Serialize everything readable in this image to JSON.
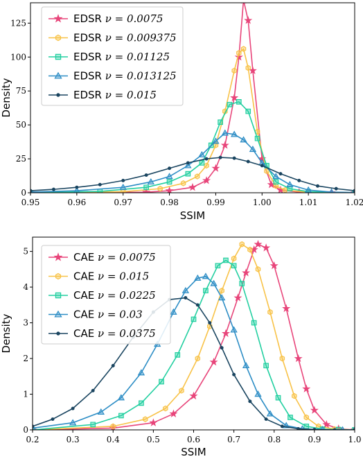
{
  "chart_data": [
    {
      "type": "line",
      "xlabel": "SSIM",
      "ylabel": "Density",
      "xlim": [
        0.95,
        1.02
      ],
      "ylim": [
        0,
        140
      ],
      "xticks": [
        0.95,
        0.96,
        0.97,
        0.98,
        0.99,
        1.0,
        1.01,
        1.02
      ],
      "xtick_labels": [
        "0.95",
        "0.96",
        "0.97",
        "0.98",
        "0.99",
        "1.00",
        "1.01",
        "1.02"
      ],
      "yticks": [
        0,
        25,
        50,
        75,
        100,
        125
      ],
      "ytick_labels": [
        "0",
        "25",
        "50",
        "75",
        "100",
        "125"
      ],
      "legend_position": "top-left",
      "grid": false,
      "series": [
        {
          "name": "EDSR",
          "nu": "ν = 0.0075",
          "color": "#e8457a",
          "marker": "star",
          "x": [
            0.95,
            0.975,
            0.98,
            0.985,
            0.988,
            0.99,
            0.992,
            0.994,
            0.995,
            0.996,
            0.997,
            0.998,
            1.0,
            1.002,
            1.004,
            1.008,
            1.015,
            1.02
          ],
          "y": [
            0,
            0.4,
            1.5,
            4,
            9,
            18,
            35,
            70,
            100,
            142,
            127,
            90,
            25,
            6,
            2,
            0.5,
            0.1,
            0
          ]
        },
        {
          "name": "EDSR",
          "nu": "ν = 0.009375",
          "color": "#f8c247",
          "marker": "hexagon",
          "x": [
            0.95,
            0.97,
            0.978,
            0.983,
            0.986,
            0.988,
            0.99,
            0.992,
            0.994,
            0.995,
            0.996,
            0.997,
            0.999,
            1.001,
            1.003,
            1.005,
            1.01,
            1.02
          ],
          "y": [
            0,
            0.8,
            3,
            7,
            12,
            20,
            35,
            60,
            90,
            103,
            106,
            92,
            45,
            16,
            5,
            2,
            0.3,
            0
          ]
        },
        {
          "name": "EDSR",
          "nu": "ν = 0.01125",
          "color": "#22cfa0",
          "marker": "square",
          "x": [
            0.95,
            0.965,
            0.975,
            0.98,
            0.984,
            0.987,
            0.989,
            0.991,
            0.993,
            0.995,
            0.997,
            0.999,
            1.001,
            1.003,
            1.006,
            1.01,
            1.02
          ],
          "y": [
            0,
            1,
            4,
            8,
            14,
            22,
            35,
            52,
            65,
            67,
            60,
            40,
            20,
            8,
            3,
            0.8,
            0
          ]
        },
        {
          "name": "EDSR",
          "nu": "ν = 0.013125",
          "color": "#2c8dc5",
          "marker": "triangle",
          "x": [
            0.95,
            0.96,
            0.97,
            0.976,
            0.98,
            0.984,
            0.987,
            0.99,
            0.992,
            0.994,
            0.996,
            0.998,
            1.0,
            1.003,
            1.006,
            1.01,
            1.015,
            1.02
          ],
          "y": [
            0.5,
            1.5,
            4,
            8,
            12,
            20,
            28,
            38,
            44,
            43,
            39,
            32,
            22,
            12,
            6,
            2,
            0.5,
            0.2
          ]
        },
        {
          "name": "EDSR",
          "nu": "ν = 0.015",
          "color": "#1a4560",
          "marker": "circle",
          "x": [
            0.95,
            0.955,
            0.96,
            0.965,
            0.97,
            0.975,
            0.98,
            0.984,
            0.988,
            0.991,
            0.994,
            0.997,
            1.0,
            1.004,
            1.008,
            1.012,
            1.016,
            1.02
          ],
          "y": [
            1.5,
            2.5,
            4,
            6,
            9,
            13,
            18,
            22,
            25,
            26,
            25.5,
            23,
            20,
            14,
            9,
            5,
            3,
            1.5
          ]
        }
      ]
    },
    {
      "type": "line",
      "xlabel": "SSIM",
      "ylabel": "Density",
      "xlim": [
        0.2,
        1.0
      ],
      "ylim": [
        0,
        5.4
      ],
      "xticks": [
        0.2,
        0.3,
        0.4,
        0.5,
        0.6,
        0.7,
        0.8,
        0.9,
        1.0
      ],
      "xtick_labels": [
        "0.2",
        "0.3",
        "0.4",
        "0.5",
        "0.6",
        "0.7",
        "0.8",
        "0.9",
        "1.0"
      ],
      "yticks": [
        0,
        1,
        2,
        3,
        4,
        5
      ],
      "ytick_labels": [
        "0",
        "1",
        "2",
        "3",
        "4",
        "5"
      ],
      "legend_position": "top-left",
      "grid": false,
      "series": [
        {
          "name": "CAE",
          "nu": "ν = 0.0075",
          "color": "#e8457a",
          "marker": "star",
          "x": [
            0.2,
            0.4,
            0.5,
            0.55,
            0.6,
            0.65,
            0.68,
            0.71,
            0.73,
            0.75,
            0.76,
            0.78,
            0.8,
            0.83,
            0.86,
            0.88,
            0.9,
            0.93,
            0.96,
            1.0
          ],
          "y": [
            0,
            0.05,
            0.2,
            0.45,
            0.95,
            1.9,
            2.7,
            3.7,
            4.4,
            5.05,
            5.2,
            5.1,
            4.6,
            3.4,
            2.0,
            1.15,
            0.55,
            0.15,
            0.03,
            0
          ]
        },
        {
          "name": "CAE",
          "nu": "ν = 0.015",
          "color": "#f8c247",
          "marker": "hexagon",
          "x": [
            0.2,
            0.4,
            0.48,
            0.53,
            0.57,
            0.61,
            0.64,
            0.67,
            0.7,
            0.72,
            0.74,
            0.76,
            0.79,
            0.82,
            0.85,
            0.88,
            0.91,
            0.95,
            1.0
          ],
          "y": [
            0,
            0.1,
            0.3,
            0.6,
            1.1,
            2.0,
            2.9,
            3.9,
            4.8,
            5.2,
            5.05,
            4.5,
            3.3,
            2.0,
            0.95,
            0.35,
            0.1,
            0.02,
            0
          ]
        },
        {
          "name": "CAE",
          "nu": "ν = 0.0225",
          "color": "#22cfa0",
          "marker": "square",
          "x": [
            0.2,
            0.35,
            0.42,
            0.47,
            0.52,
            0.56,
            0.6,
            0.63,
            0.66,
            0.68,
            0.7,
            0.72,
            0.75,
            0.78,
            0.81,
            0.84,
            0.88,
            0.92,
            0.96,
            1.0
          ],
          "y": [
            0,
            0.15,
            0.4,
            0.75,
            1.35,
            2.1,
            3.1,
            3.9,
            4.6,
            4.75,
            4.6,
            4.1,
            3.0,
            1.8,
            0.9,
            0.35,
            0.1,
            0.02,
            0.01,
            0
          ]
        },
        {
          "name": "CAE",
          "nu": "ν = 0.03",
          "color": "#2c8dc5",
          "marker": "triangle",
          "x": [
            0.2,
            0.3,
            0.37,
            0.42,
            0.47,
            0.51,
            0.55,
            0.58,
            0.61,
            0.63,
            0.65,
            0.67,
            0.7,
            0.73,
            0.76,
            0.79,
            0.83,
            0.87,
            0.92,
            0.97,
            1.0
          ],
          "y": [
            0.05,
            0.2,
            0.5,
            0.9,
            1.6,
            2.4,
            3.3,
            3.9,
            4.25,
            4.3,
            4.1,
            3.7,
            2.8,
            1.8,
            1.0,
            0.45,
            0.12,
            0.03,
            0.01,
            0,
            0
          ]
        },
        {
          "name": "CAE",
          "nu": "ν = 0.0375",
          "color": "#1a4560",
          "marker": "circle",
          "x": [
            0.2,
            0.25,
            0.3,
            0.35,
            0.4,
            0.45,
            0.5,
            0.54,
            0.58,
            0.61,
            0.64,
            0.67,
            0.7,
            0.74,
            0.78,
            0.82,
            0.86,
            0.9,
            0.95,
            1.0
          ],
          "y": [
            0.1,
            0.3,
            0.6,
            1.1,
            1.8,
            2.6,
            3.3,
            3.65,
            3.7,
            3.5,
            3.0,
            2.3,
            1.55,
            0.8,
            0.3,
            0.1,
            0.03,
            0.01,
            0,
            0
          ]
        }
      ]
    }
  ]
}
